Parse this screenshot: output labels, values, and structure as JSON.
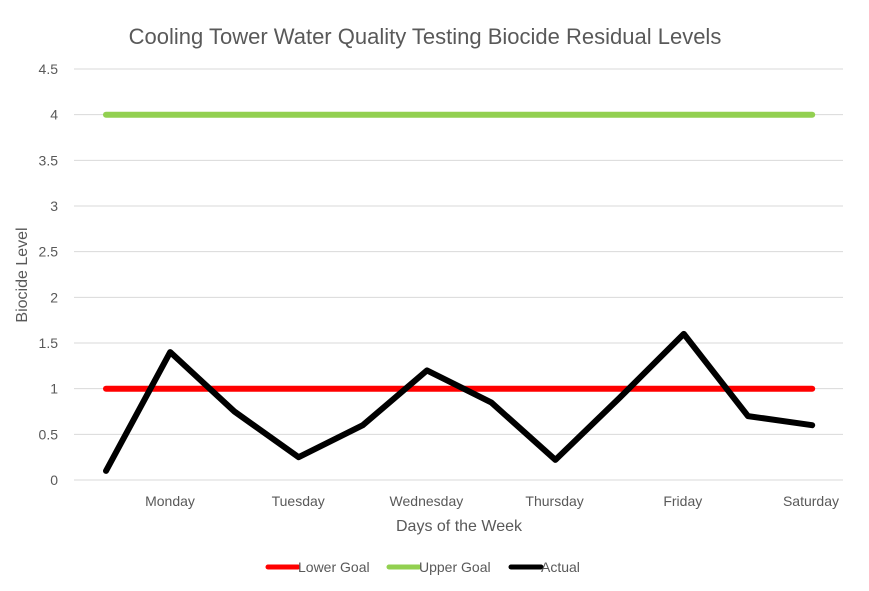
{
  "chart_data": {
    "type": "line",
    "title": "Cooling Tower Water Quality Testing Biocide Residual Levels",
    "xlabel": "Days of the Week",
    "ylabel": "Biocide Level",
    "ylim": [
      0,
      4.5
    ],
    "yticks": [
      "0",
      "0.5",
      "1",
      "1.5",
      "2",
      "2.5",
      "3",
      "3.5",
      "4",
      "4.5"
    ],
    "ytick_values": [
      0,
      0.5,
      1,
      1.5,
      2,
      2.5,
      3,
      3.5,
      4,
      4.5
    ],
    "categories": [
      "Monday",
      "Tuesday",
      "Wednesday",
      "Thursday",
      "Friday",
      "Saturday"
    ],
    "grid": true,
    "legend_position": "bottom",
    "series": [
      {
        "name": "Lower Goal",
        "color": "#ff0000",
        "x": [
          0,
          11
        ],
        "values": [
          1,
          1
        ]
      },
      {
        "name": "Upper Goal",
        "color": "#92d050",
        "x": [
          0,
          11
        ],
        "values": [
          4,
          4
        ]
      },
      {
        "name": "Actual",
        "color": "#000000",
        "x": [
          0,
          1,
          2,
          3,
          4,
          5,
          6,
          7,
          8,
          9,
          10,
          11
        ],
        "values": [
          0.1,
          1.4,
          0.75,
          0.25,
          0.6,
          1.2,
          0.85,
          0.22,
          0.9,
          1.6,
          0.7,
          0.6
        ]
      }
    ]
  }
}
